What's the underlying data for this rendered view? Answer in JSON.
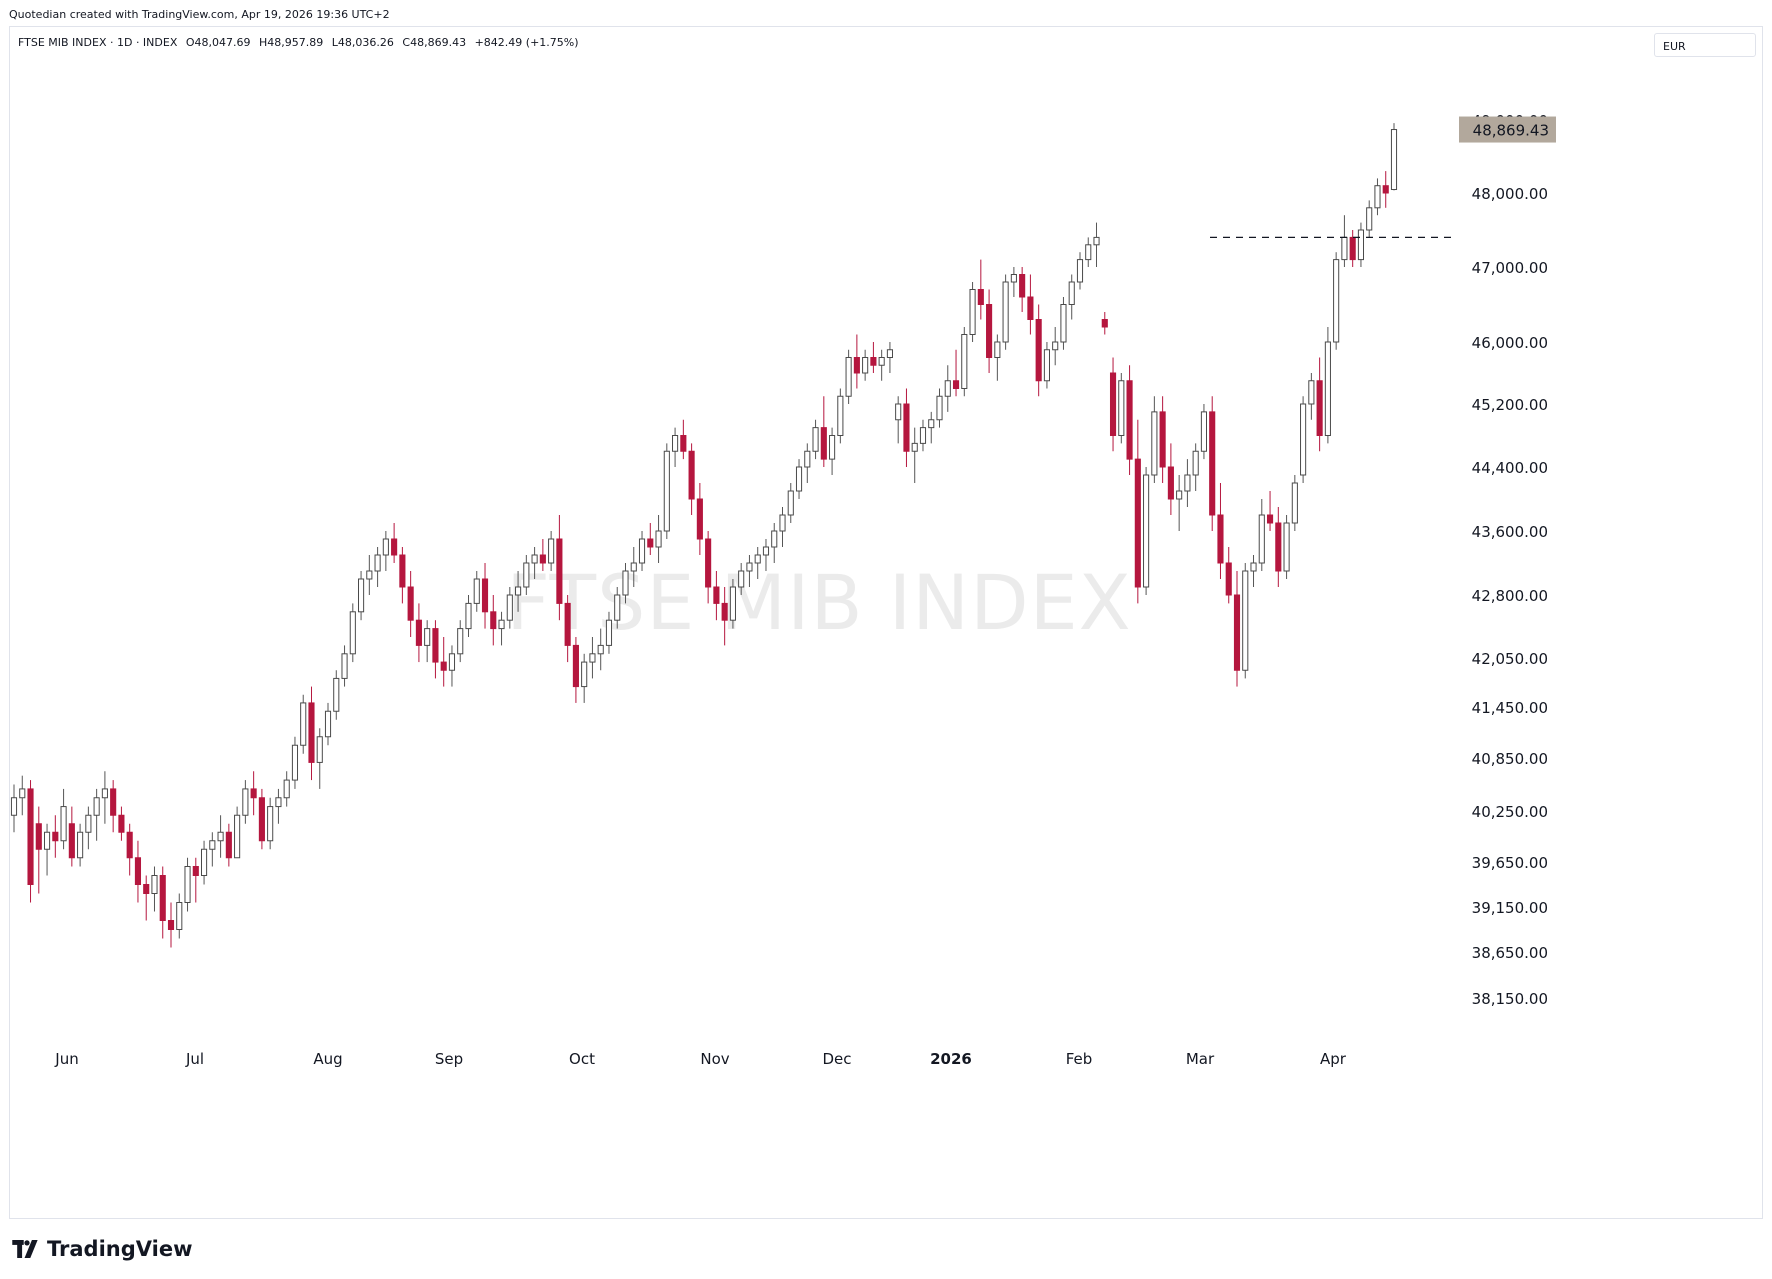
{
  "credit": "Quotedian created with TradingView.com, Apr 19, 2026 19:36 UTC+2",
  "legend": {
    "symbol": "FTSE MIB INDEX · 1D · INDEX",
    "open": "O48,047.69",
    "high": "H48,957.89",
    "low": "L48,036.26",
    "close": "C48,869.43",
    "change": "+842.49 (+1.75%)"
  },
  "currency": "EUR",
  "watermark": "FTSE MIB INDEX",
  "brand": "TradingView",
  "colors": {
    "up": "#ffffff",
    "up_border": "#4a4a4a",
    "down": "#b5163e",
    "last_price_bg": "#b2a89c",
    "wick": "#555555"
  },
  "chart_data": {
    "type": "candlestick",
    "y_ticks": [
      "38,150.00",
      "38,650.00",
      "39,150.00",
      "39,650.00",
      "40,250.00",
      "40,850.00",
      "41,450.00",
      "42,050.00",
      "42,800.00",
      "43,600.00",
      "44,400.00",
      "45,200.00",
      "46,000.00",
      "47,000.00",
      "48,000.00",
      "49,000.00"
    ],
    "x_ticks": [
      "Jun",
      "Jul",
      "Aug",
      "Sep",
      "Oct",
      "Nov",
      "Dec",
      "2026",
      "Feb",
      "Mar",
      "Apr"
    ],
    "last_price": "48,869.43",
    "resistance_level": 47400,
    "ohlc": [
      [
        40200,
        40550,
        40000,
        40400
      ],
      [
        40400,
        40650,
        40200,
        40500
      ],
      [
        40500,
        40600,
        39200,
        39400
      ],
      [
        40100,
        40300,
        39300,
        39800
      ],
      [
        39800,
        40100,
        39500,
        40000
      ],
      [
        40000,
        40200,
        39700,
        39900
      ],
      [
        39900,
        40500,
        39800,
        40300
      ],
      [
        40100,
        40300,
        39600,
        39700
      ],
      [
        39700,
        40100,
        39600,
        40000
      ],
      [
        40000,
        40300,
        39800,
        40200
      ],
      [
        40200,
        40500,
        39900,
        40400
      ],
      [
        40400,
        40700,
        40100,
        40500
      ],
      [
        40500,
        40600,
        40000,
        40200
      ],
      [
        40200,
        40300,
        39900,
        40000
      ],
      [
        40000,
        40100,
        39500,
        39700
      ],
      [
        39700,
        39900,
        39200,
        39400
      ],
      [
        39400,
        39500,
        39000,
        39300
      ],
      [
        39300,
        39600,
        39100,
        39500
      ],
      [
        39500,
        39600,
        38800,
        39000
      ],
      [
        39000,
        39200,
        38700,
        38900
      ],
      [
        38900,
        39300,
        38800,
        39200
      ],
      [
        39200,
        39700,
        39100,
        39600
      ],
      [
        39600,
        39700,
        39200,
        39500
      ],
      [
        39500,
        39900,
        39400,
        39800
      ],
      [
        39800,
        40000,
        39600,
        39900
      ],
      [
        39900,
        40200,
        39700,
        40000
      ],
      [
        40000,
        40100,
        39600,
        39700
      ],
      [
        39700,
        40300,
        39700,
        40200
      ],
      [
        40200,
        40600,
        40100,
        40500
      ],
      [
        40500,
        40700,
        40200,
        40400
      ],
      [
        40400,
        40500,
        39800,
        39900
      ],
      [
        39900,
        40400,
        39800,
        40300
      ],
      [
        40300,
        40500,
        40100,
        40400
      ],
      [
        40400,
        40700,
        40300,
        40600
      ],
      [
        40600,
        41100,
        40500,
        41000
      ],
      [
        41000,
        41600,
        40900,
        41500
      ],
      [
        41500,
        41700,
        40600,
        40800
      ],
      [
        40800,
        41200,
        40500,
        41100
      ],
      [
        41100,
        41500,
        41000,
        41400
      ],
      [
        41400,
        41900,
        41300,
        41800
      ],
      [
        41800,
        42200,
        41700,
        42100
      ],
      [
        42100,
        42700,
        42000,
        42600
      ],
      [
        42600,
        43100,
        42500,
        43000
      ],
      [
        43000,
        43300,
        42800,
        43100
      ],
      [
        43100,
        43400,
        42900,
        43300
      ],
      [
        43300,
        43600,
        43100,
        43500
      ],
      [
        43500,
        43700,
        43200,
        43300
      ],
      [
        43300,
        43400,
        42700,
        42900
      ],
      [
        42900,
        43100,
        42300,
        42500
      ],
      [
        42500,
        42700,
        42000,
        42200
      ],
      [
        42200,
        42500,
        42000,
        42400
      ],
      [
        42400,
        42500,
        41800,
        42000
      ],
      [
        42000,
        42300,
        41700,
        41900
      ],
      [
        41900,
        42200,
        41700,
        42100
      ],
      [
        42100,
        42500,
        42000,
        42400
      ],
      [
        42400,
        42800,
        42300,
        42700
      ],
      [
        42700,
        43100,
        42600,
        43000
      ],
      [
        43000,
        43200,
        42400,
        42600
      ],
      [
        42600,
        42800,
        42200,
        42400
      ],
      [
        42400,
        42600,
        42200,
        42500
      ],
      [
        42500,
        42900,
        42400,
        42800
      ],
      [
        42800,
        43100,
        42600,
        42900
      ],
      [
        42900,
        43300,
        42800,
        43200
      ],
      [
        43200,
        43400,
        43000,
        43300
      ],
      [
        43300,
        43500,
        43100,
        43200
      ],
      [
        43200,
        43600,
        43100,
        43500
      ],
      [
        43500,
        43800,
        42500,
        42700
      ],
      [
        42700,
        42800,
        42000,
        42200
      ],
      [
        42200,
        42300,
        41500,
        41700
      ],
      [
        41700,
        42100,
        41500,
        42000
      ],
      [
        42000,
        42300,
        41800,
        42100
      ],
      [
        42100,
        42400,
        41900,
        42200
      ],
      [
        42200,
        42600,
        42100,
        42500
      ],
      [
        42500,
        42900,
        42400,
        42800
      ],
      [
        42800,
        43200,
        42700,
        43100
      ],
      [
        43100,
        43400,
        42900,
        43200
      ],
      [
        43200,
        43600,
        43100,
        43500
      ],
      [
        43500,
        43700,
        43300,
        43400
      ],
      [
        43400,
        43800,
        43200,
        43600
      ],
      [
        43600,
        44700,
        43500,
        44600
      ],
      [
        44600,
        44900,
        44400,
        44800
      ],
      [
        44800,
        45000,
        44500,
        44600
      ],
      [
        44600,
        44700,
        43800,
        44000
      ],
      [
        44000,
        44200,
        43300,
        43500
      ],
      [
        43500,
        43600,
        42700,
        42900
      ],
      [
        42900,
        43100,
        42500,
        42700
      ],
      [
        42700,
        42900,
        42200,
        42500
      ],
      [
        42500,
        43000,
        42400,
        42900
      ],
      [
        42900,
        43200,
        42800,
        43100
      ],
      [
        43100,
        43300,
        42900,
        43200
      ],
      [
        43200,
        43400,
        43000,
        43300
      ],
      [
        43300,
        43500,
        43100,
        43400
      ],
      [
        43400,
        43700,
        43200,
        43600
      ],
      [
        43600,
        43900,
        43400,
        43800
      ],
      [
        43800,
        44200,
        43700,
        44100
      ],
      [
        44100,
        44500,
        44000,
        44400
      ],
      [
        44400,
        44700,
        44200,
        44600
      ],
      [
        44600,
        45000,
        44500,
        44900
      ],
      [
        44900,
        45300,
        44400,
        44500
      ],
      [
        44500,
        44900,
        44300,
        44800
      ],
      [
        44800,
        45400,
        44700,
        45300
      ],
      [
        45300,
        45900,
        45200,
        45800
      ],
      [
        45800,
        46100,
        45400,
        45600
      ],
      [
        45600,
        45900,
        45500,
        45800
      ],
      [
        45800,
        46000,
        45600,
        45700
      ],
      [
        45700,
        45900,
        45500,
        45800
      ],
      [
        45800,
        46000,
        45600,
        45900
      ],
      [
        45000,
        45300,
        44700,
        45200
      ],
      [
        45200,
        45400,
        44400,
        44600
      ],
      [
        44600,
        44900,
        44200,
        44700
      ],
      [
        44700,
        45000,
        44600,
        44900
      ],
      [
        44900,
        45100,
        44700,
        45000
      ],
      [
        45000,
        45400,
        44900,
        45300
      ],
      [
        45300,
        45700,
        45100,
        45500
      ],
      [
        45500,
        45900,
        45300,
        45400
      ],
      [
        45400,
        46200,
        45300,
        46100
      ],
      [
        46100,
        46800,
        46000,
        46700
      ],
      [
        46700,
        47100,
        46300,
        46500
      ],
      [
        46500,
        46700,
        45600,
        45800
      ],
      [
        45800,
        46100,
        45500,
        46000
      ],
      [
        46000,
        46900,
        45900,
        46800
      ],
      [
        46800,
        47000,
        46600,
        46900
      ],
      [
        46900,
        47000,
        46400,
        46600
      ],
      [
        46600,
        46900,
        46100,
        46300
      ],
      [
        46300,
        46500,
        45300,
        45500
      ],
      [
        45500,
        46000,
        45400,
        45900
      ],
      [
        45900,
        46200,
        45700,
        46000
      ],
      [
        46000,
        46600,
        45900,
        46500
      ],
      [
        46500,
        46900,
        46300,
        46800
      ],
      [
        46800,
        47200,
        46700,
        47100
      ],
      [
        47100,
        47400,
        47000,
        47300
      ],
      [
        47300,
        47600,
        47000,
        47400
      ],
      [
        46300,
        46400,
        46100,
        46200
      ],
      [
        45600,
        45800,
        44600,
        44800
      ],
      [
        44800,
        45600,
        44700,
        45500
      ],
      [
        45500,
        45700,
        44300,
        44500
      ],
      [
        44500,
        45000,
        42700,
        42900
      ],
      [
        42900,
        44400,
        42800,
        44300
      ],
      [
        44300,
        45300,
        44200,
        45100
      ],
      [
        45100,
        45300,
        44200,
        44400
      ],
      [
        44400,
        44700,
        43800,
        44000
      ],
      [
        44000,
        44300,
        43600,
        44100
      ],
      [
        44100,
        44500,
        43900,
        44300
      ],
      [
        44300,
        44700,
        44100,
        44600
      ],
      [
        44600,
        45200,
        44500,
        45100
      ],
      [
        45100,
        45300,
        43600,
        43800
      ],
      [
        43800,
        44200,
        43000,
        43200
      ],
      [
        43200,
        43400,
        42700,
        42800
      ],
      [
        42800,
        43100,
        41700,
        41900
      ],
      [
        41900,
        43200,
        41800,
        43100
      ],
      [
        43100,
        43300,
        42900,
        43200
      ],
      [
        43200,
        44000,
        43100,
        43800
      ],
      [
        43800,
        44100,
        43600,
        43700
      ],
      [
        43700,
        43900,
        42900,
        43100
      ],
      [
        43100,
        43800,
        43000,
        43700
      ],
      [
        43700,
        44300,
        43600,
        44200
      ],
      [
        44300,
        45300,
        44200,
        45200
      ],
      [
        45200,
        45600,
        45000,
        45500
      ],
      [
        45500,
        45800,
        44600,
        44800
      ],
      [
        44800,
        46200,
        44700,
        46000
      ],
      [
        46000,
        47200,
        45900,
        47100
      ],
      [
        47100,
        47700,
        47000,
        47400
      ],
      [
        47400,
        47500,
        47000,
        47100
      ],
      [
        47100,
        47600,
        47000,
        47500
      ],
      [
        47500,
        47900,
        47400,
        47800
      ],
      [
        47800,
        48200,
        47700,
        48100
      ],
      [
        48100,
        48300,
        47800,
        48000
      ],
      [
        48047.69,
        48957.89,
        48036.26,
        48869.43
      ]
    ]
  }
}
